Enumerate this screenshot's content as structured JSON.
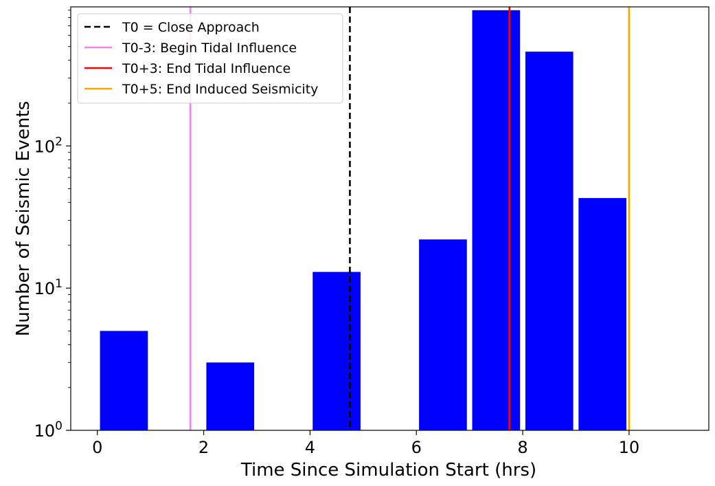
{
  "chart_data": {
    "type": "bar",
    "xlabel": "Time Since Simulation Start (hrs)",
    "ylabel": "Number of Seismic Events",
    "yscale": "log",
    "xlim": [
      -0.5,
      11.5
    ],
    "ylim": [
      1,
      950
    ],
    "xticks": [
      0,
      2,
      4,
      6,
      8,
      10
    ],
    "yticks": [
      {
        "value": 1,
        "base": "10",
        "exp": "0"
      },
      {
        "value": 10,
        "base": "10",
        "exp": "1"
      },
      {
        "value": 100,
        "base": "10",
        "exp": "2"
      }
    ],
    "bars": [
      {
        "start": 0,
        "end": 1,
        "value": 5
      },
      {
        "start": 2,
        "end": 3,
        "value": 3
      },
      {
        "start": 4,
        "end": 5,
        "value": 13
      },
      {
        "start": 6,
        "end": 7,
        "value": 22
      },
      {
        "start": 7,
        "end": 8,
        "value": 900
      },
      {
        "start": 8,
        "end": 9,
        "value": 460
      },
      {
        "start": 9,
        "end": 10,
        "value": 43
      }
    ],
    "bar_color": "#0000ff",
    "vlines": [
      {
        "x": 4.75,
        "label": "T0 = Close Approach",
        "color": "#000000",
        "style": "dashed"
      },
      {
        "x": 1.75,
        "label": "T0-3: Begin Tidal Influence",
        "color": "#ee82ee",
        "style": "solid"
      },
      {
        "x": 7.75,
        "label": "T0+3: End Tidal Influence",
        "color": "#ff0000",
        "style": "solid"
      },
      {
        "x": 10.0,
        "label": "T0+5: End Induced Seismicity",
        "color": "#ffa500",
        "style": "solid"
      }
    ],
    "legend_position": "top-left",
    "grid": false
  }
}
